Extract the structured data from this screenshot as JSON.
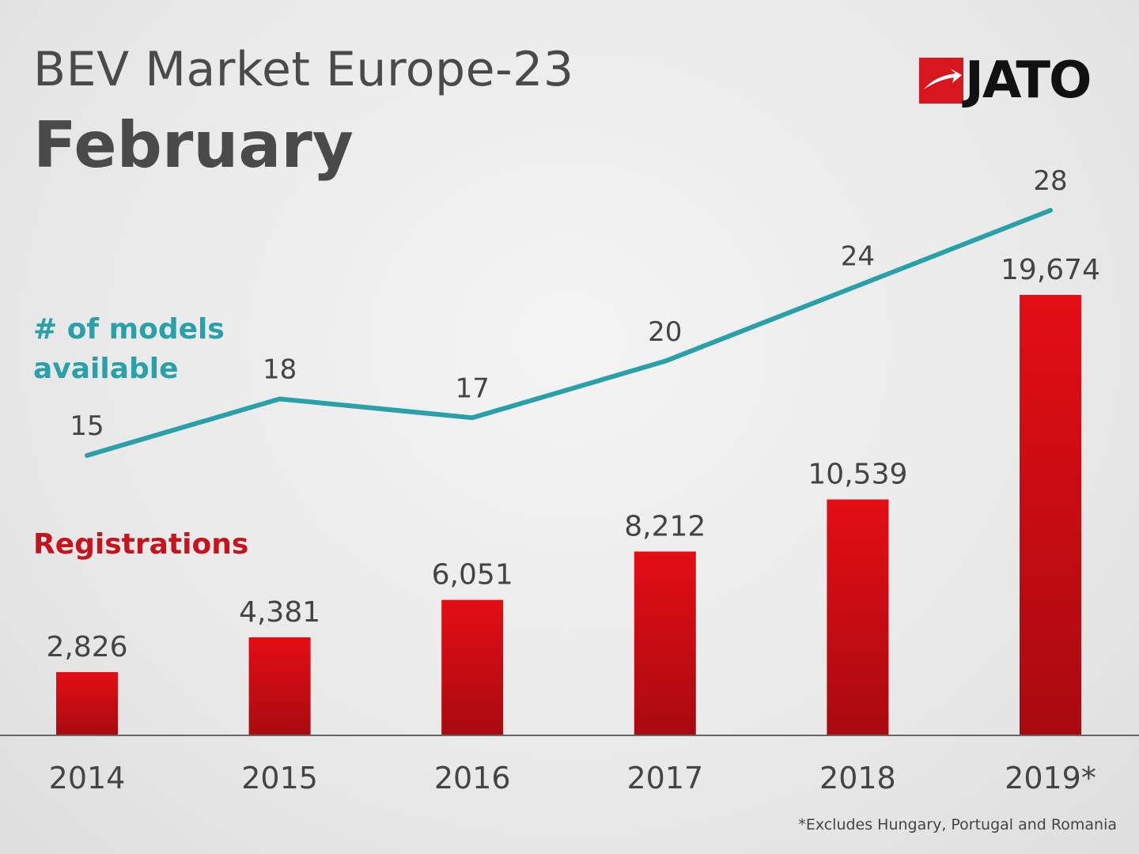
{
  "title": {
    "line1": "BEV Market Europe-23",
    "line2": "February"
  },
  "logo": {
    "text": "JATO",
    "icon": "jato-arrow-icon",
    "accent_color": "#d7161e"
  },
  "chart_data": {
    "type": "bar",
    "categories": [
      "2014",
      "2015",
      "2016",
      "2017",
      "2018",
      "2019*"
    ],
    "series": [
      {
        "name": "Registrations",
        "type": "bar",
        "color": "#d40d12",
        "values": [
          2826,
          4381,
          6051,
          8212,
          10539,
          19674
        ],
        "labels": [
          "2,826",
          "4,381",
          "6,051",
          "8,212",
          "10,539",
          "19,674"
        ]
      },
      {
        "name": "# of models available",
        "type": "line",
        "color": "#2aa0a8",
        "values": [
          15,
          18,
          17,
          20,
          24,
          28
        ],
        "labels": [
          "15",
          "18",
          "17",
          "20",
          "24",
          "28"
        ]
      }
    ],
    "grid": false,
    "legend": "inline-left"
  },
  "footnote": "*Excludes Hungary, Portugal and Romania"
}
